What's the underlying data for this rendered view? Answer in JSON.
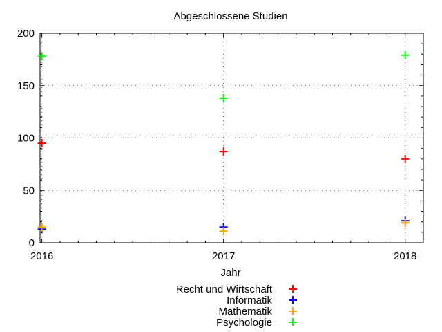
{
  "chart_data": {
    "type": "scatter",
    "title": "Abgeschlossene Studien",
    "xlabel": "Jahr",
    "ylabel": "",
    "x": [
      2016,
      2017,
      2018
    ],
    "x_tick_labels": [
      "2016",
      "2017",
      "2018"
    ],
    "xlim": [
      2015.99,
      2018.1
    ],
    "ylim": [
      0,
      200
    ],
    "y_ticks": [
      0,
      50,
      100,
      150,
      200
    ],
    "y_tick_labels": [
      "0",
      "50",
      "100",
      "150",
      "200"
    ],
    "grid": true,
    "legend_position": "bottom-center",
    "marker": "+",
    "series": [
      {
        "name": "Recht und Wirtschaft",
        "color": "#ff0000",
        "values": [
          95,
          87,
          80
        ]
      },
      {
        "name": "Informatik",
        "color": "#0000ff",
        "values": [
          13,
          15,
          21
        ]
      },
      {
        "name": "Mathematik",
        "color": "#ffa500",
        "values": [
          15,
          11,
          19
        ]
      },
      {
        "name": "Psychologie",
        "color": "#00ff00",
        "values": [
          178,
          138,
          179
        ]
      }
    ]
  }
}
